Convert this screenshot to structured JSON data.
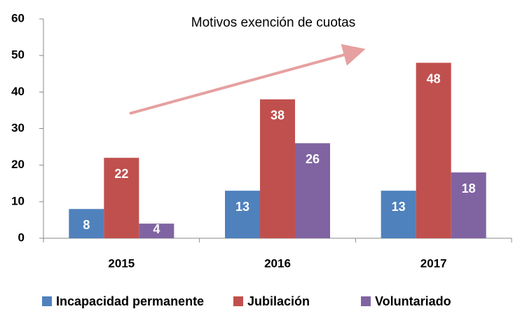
{
  "chart_data": {
    "type": "bar",
    "title": "Motivos exención de cuotas",
    "categories": [
      "2015",
      "2016",
      "2017"
    ],
    "series": [
      {
        "name": "Incapacidad permanente",
        "color": "#4f81bd",
        "values": [
          8,
          13,
          13
        ]
      },
      {
        "name": "Jubilación",
        "color": "#c0504d",
        "values": [
          22,
          38,
          48
        ]
      },
      {
        "name": "Voluntariado",
        "color": "#8064a2",
        "values": [
          4,
          26,
          18
        ]
      }
    ],
    "ylim": [
      0,
      60
    ],
    "yticks": [
      0,
      10,
      20,
      30,
      40,
      50,
      60
    ],
    "grid": false,
    "legend": "bottom"
  }
}
